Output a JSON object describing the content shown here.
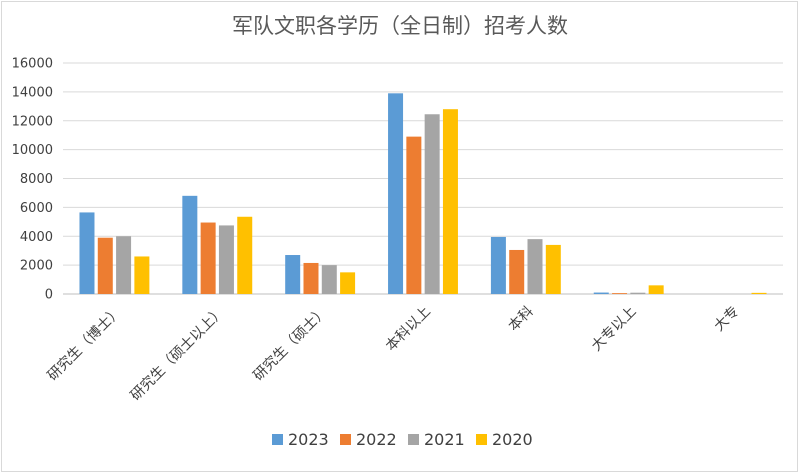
{
  "chart_data": {
    "type": "bar",
    "title": "军队文职各学历（全日制）招考人数",
    "categories": [
      "研究生（博士）",
      "研究生（硕士以上）",
      "研究生（硕士）",
      "本科以上",
      "本科",
      "大专以上",
      "大专"
    ],
    "series": [
      {
        "name": "2023",
        "color": "#5b9bd5",
        "values": [
          5650,
          6800,
          2700,
          13900,
          3950,
          100,
          0
        ]
      },
      {
        "name": "2022",
        "color": "#ed7d31",
        "values": [
          3900,
          4950,
          2150,
          10900,
          3050,
          60,
          0
        ]
      },
      {
        "name": "2021",
        "color": "#a5a5a5",
        "values": [
          4000,
          4750,
          2000,
          12450,
          3800,
          90,
          0
        ]
      },
      {
        "name": "2020",
        "color": "#ffc000",
        "values": [
          2600,
          5350,
          1500,
          12800,
          3400,
          600,
          80
        ]
      }
    ],
    "yticks": [
      "0",
      "2000",
      "4000",
      "6000",
      "8000",
      "10000",
      "12000",
      "14000",
      "16000"
    ],
    "ylim": [
      0,
      16000
    ],
    "grid": true,
    "legend": "bottom"
  }
}
